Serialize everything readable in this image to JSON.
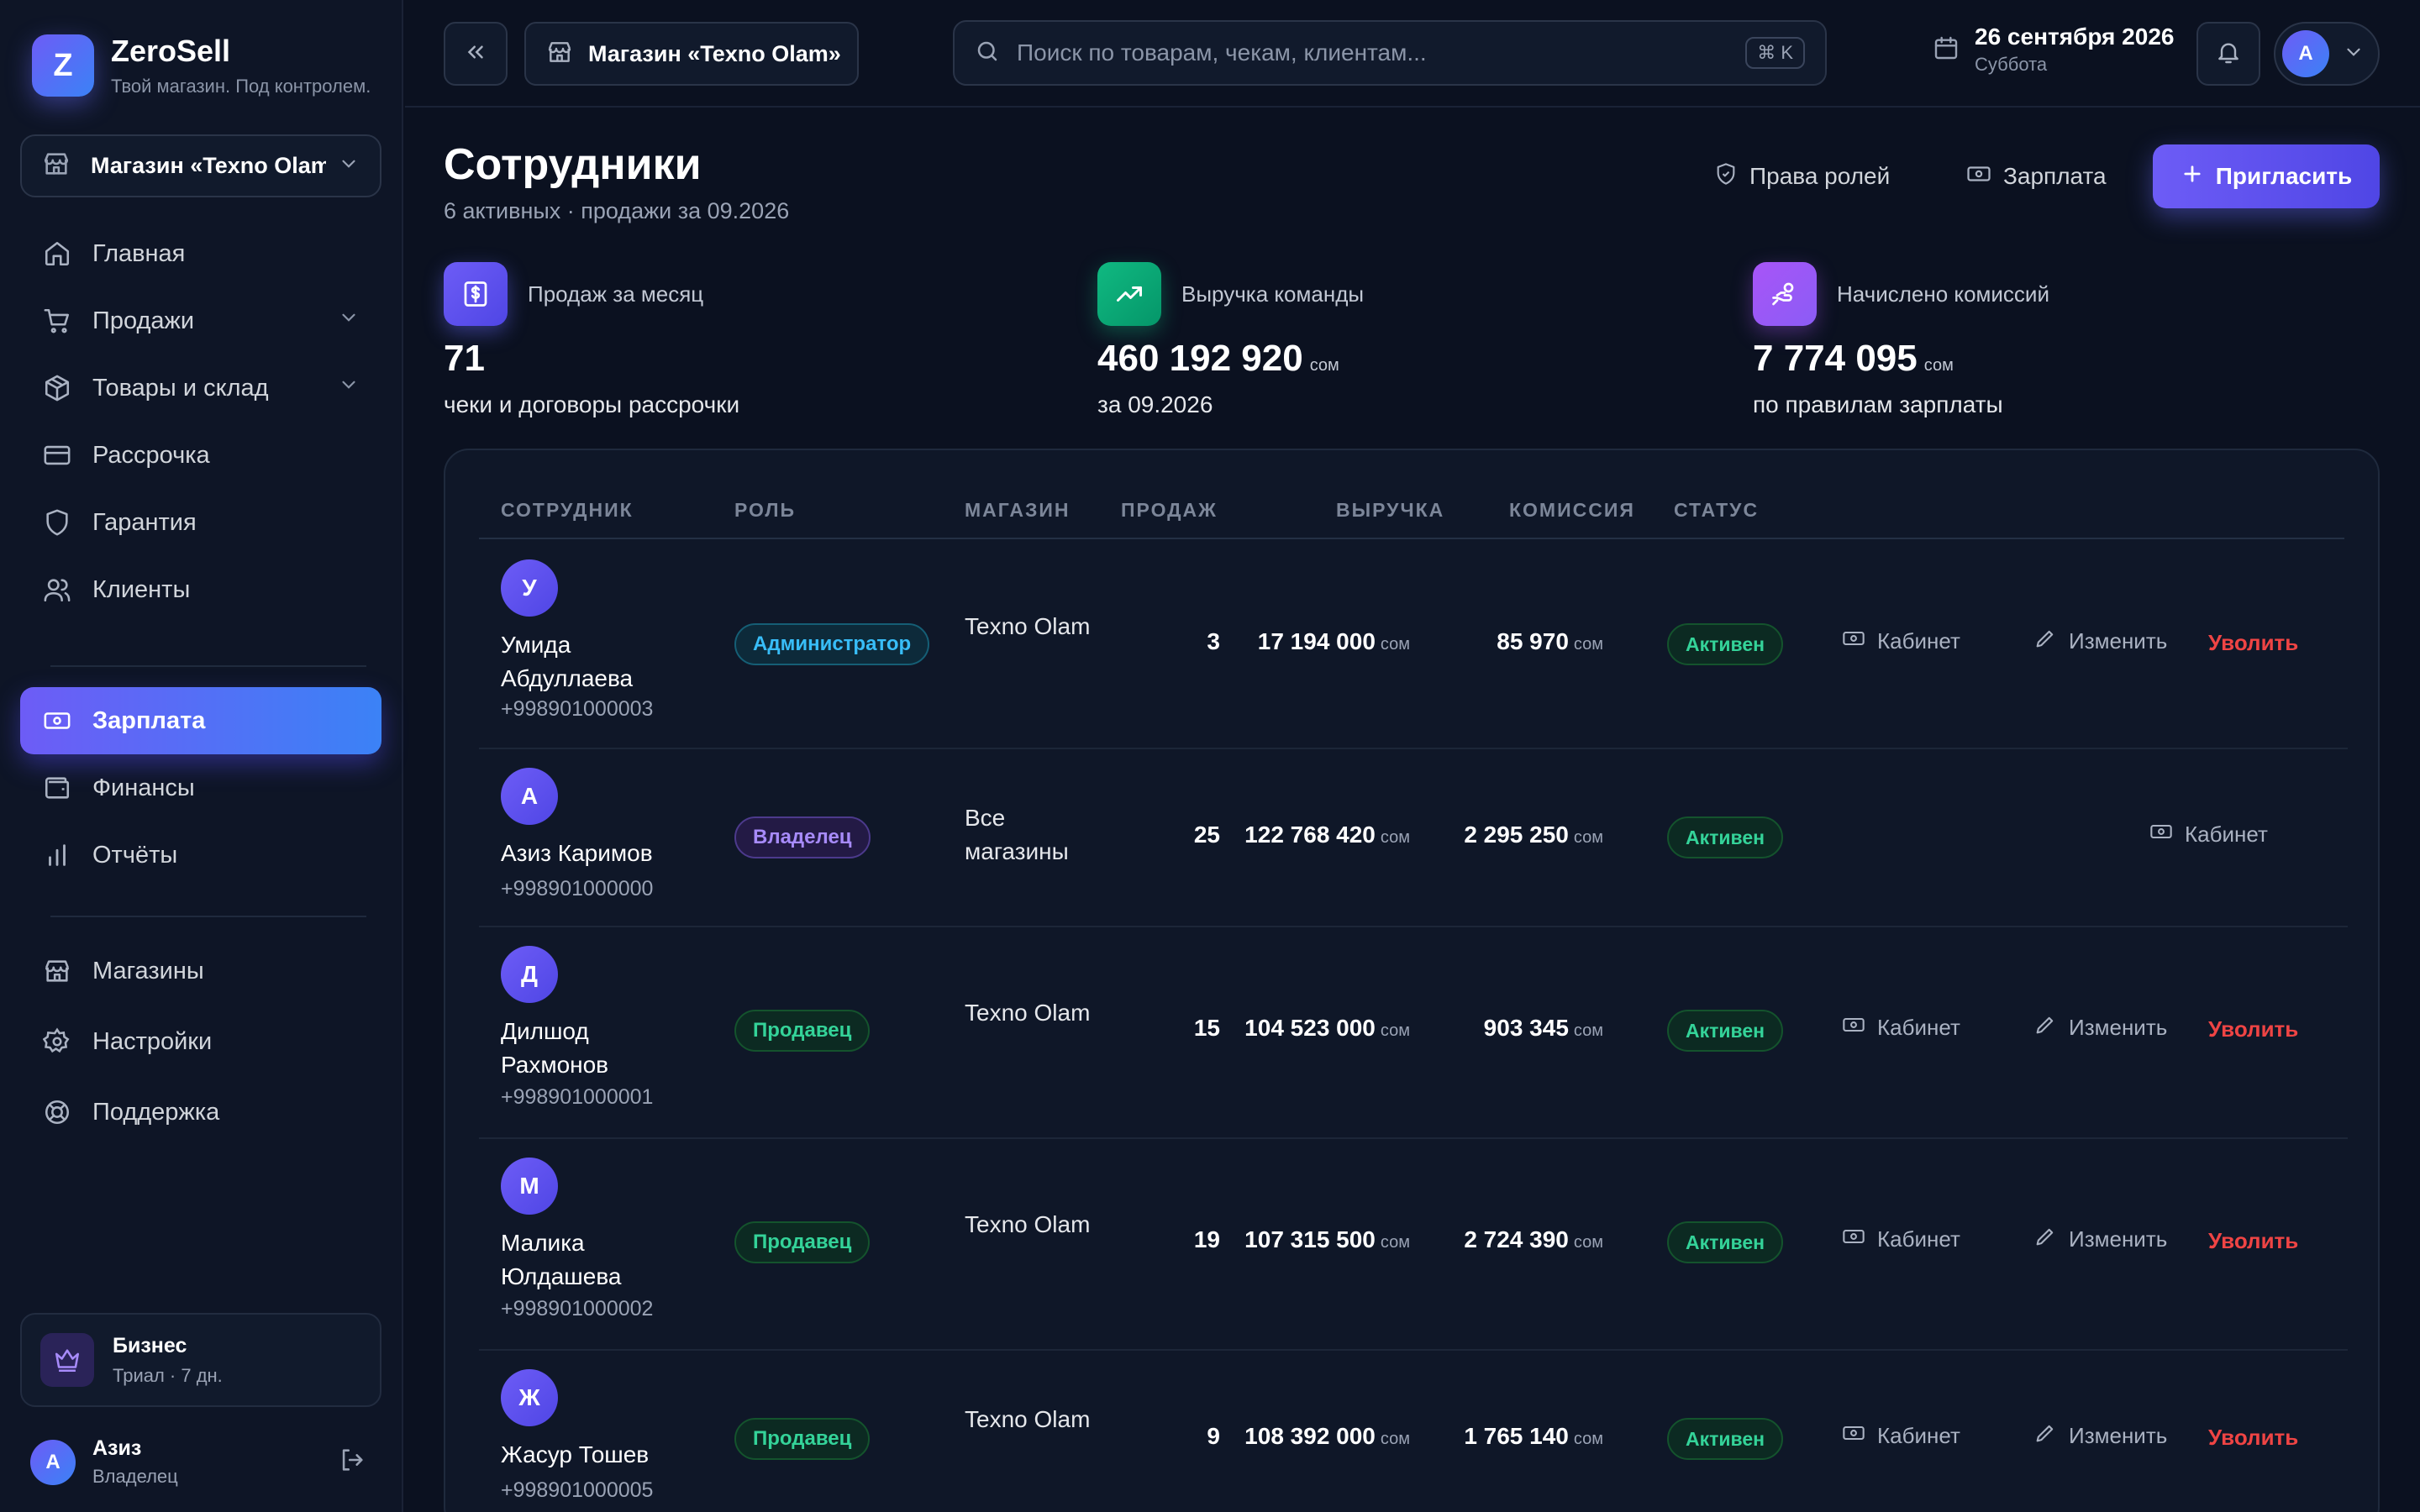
{
  "brand": {
    "name": "ZeroSell",
    "tagline": "Твой магазин. Под контролем.",
    "logo_letter": "Z"
  },
  "sidebar": {
    "store_select": "Магазин «Texno Olam»",
    "items": [
      {
        "label": "Главная",
        "icon": "home-icon"
      },
      {
        "label": "Продажи",
        "icon": "cart-icon",
        "expandable": true
      },
      {
        "label": "Товары и склад",
        "icon": "box-icon",
        "expandable": true
      },
      {
        "label": "Рассрочка",
        "icon": "card-icon"
      },
      {
        "label": "Гарантия",
        "icon": "shield-icon"
      },
      {
        "label": "Клиенты",
        "icon": "users-icon"
      },
      {
        "label": "Зарплата",
        "icon": "banknote-icon",
        "active": true
      },
      {
        "label": "Финансы",
        "icon": "wallet-icon"
      },
      {
        "label": "Отчёты",
        "icon": "bar-chart-icon"
      },
      {
        "label": "Магазины",
        "icon": "store-icon"
      },
      {
        "label": "Настройки",
        "icon": "gear-icon"
      },
      {
        "label": "Поддержка",
        "icon": "lifebuoy-icon"
      }
    ],
    "plan": {
      "title": "Бизнес",
      "subtitle": "Триал · 7 дн."
    },
    "user": {
      "initial": "А",
      "name": "Азиз",
      "role": "Владелец"
    }
  },
  "topbar": {
    "store_chip": "Магазин «Texno Olam»",
    "search_placeholder": "Поиск по товарам, чекам, клиентам...",
    "shortcut": "⌘ K",
    "date": "26 сентября 2026",
    "weekday": "Суббота",
    "user_initial": "А"
  },
  "page": {
    "title": "Сотрудники",
    "subtitle": "6 активных · продажи за 09.2026",
    "actions": {
      "roles": "Права ролей",
      "salary": "Зарплата",
      "invite": "Пригласить"
    }
  },
  "stats": [
    {
      "label": "Продаж за месяц",
      "value": "71",
      "currency": "",
      "note": "чеки и договоры рассрочки",
      "color": "#6d5cf6"
    },
    {
      "label": "Выручка команды",
      "value": "460 192 920",
      "currency": "сом",
      "note": "за 09.2026",
      "color": "#10b981"
    },
    {
      "label": "Начислено комиссий",
      "value": "7 774 095",
      "currency": "сом",
      "note": "по правилам зарплаты",
      "color": "#a855f7"
    }
  ],
  "table": {
    "columns": {
      "employee": "СОТРУДНИК",
      "role": "РОЛЬ",
      "store": "МАГАЗИН",
      "sales": "ПРОДАЖ",
      "revenue": "ВЫРУЧКА",
      "commission": "КОМИССИЯ",
      "status": "СТАТУС"
    },
    "currency": "сом",
    "actions": {
      "cabinet": "Кабинет",
      "edit": "Изменить",
      "fire": "Уволить"
    },
    "rows": [
      {
        "initial": "У",
        "name": "Умида Абдуллаева",
        "phone": "+998901000003",
        "role": "Администратор",
        "store": "Texno Olam",
        "sales": "3",
        "revenue": "17 194 000",
        "commission": "85 970",
        "status": "Активен"
      },
      {
        "initial": "А",
        "name": "Азиз Каримов",
        "phone": "+998901000000",
        "role": "Владелец",
        "store": "Все магазины",
        "sales": "25",
        "revenue": "122 768 420",
        "commission": "2 295 250",
        "status": "Активен"
      },
      {
        "initial": "Д",
        "name": "Дилшод Рахмонов",
        "phone": "+998901000001",
        "role": "Продавец",
        "store": "Texno Olam",
        "sales": "15",
        "revenue": "104 523 000",
        "commission": "903 345",
        "status": "Активен"
      },
      {
        "initial": "М",
        "name": "Малика Юлдашева",
        "phone": "+998901000002",
        "role": "Продавец",
        "store": "Texno Olam",
        "sales": "19",
        "revenue": "107 315 500",
        "commission": "2 724 390",
        "status": "Активен"
      },
      {
        "initial": "Ж",
        "name": "Жасур Тошев",
        "phone": "+998901000005",
        "role": "Продавец",
        "store": "Texno Olam",
        "sales": "9",
        "revenue": "108 392 000",
        "commission": "1 765 140",
        "status": "Активен"
      }
    ]
  }
}
